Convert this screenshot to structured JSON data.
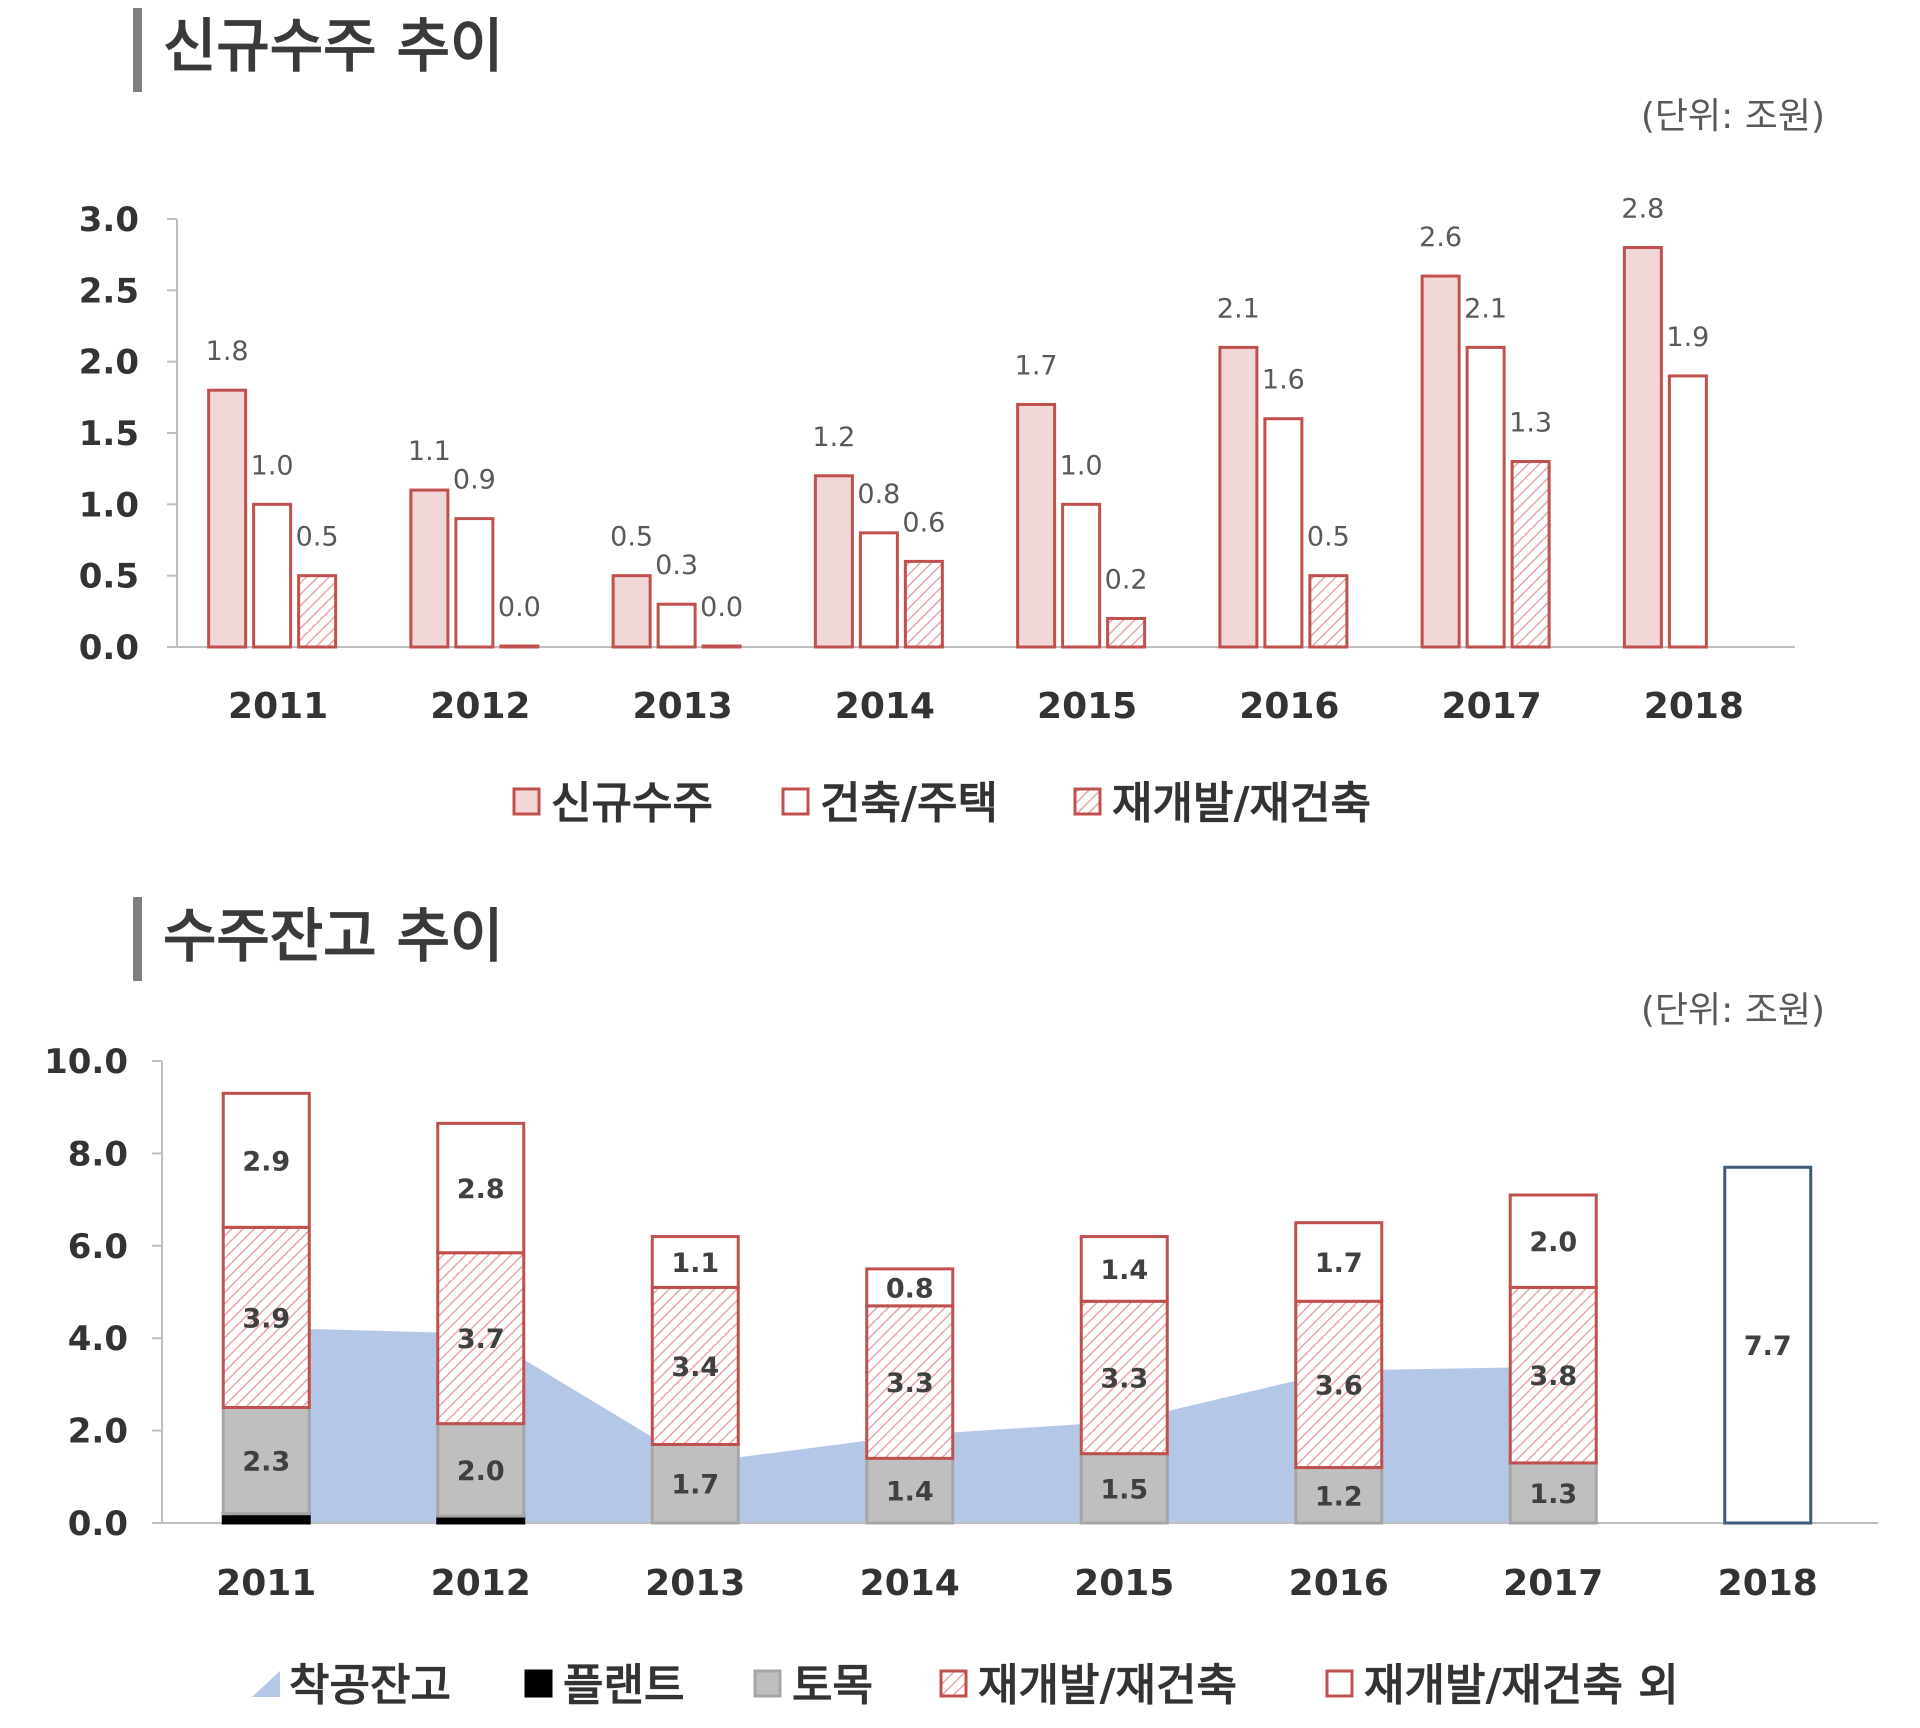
{
  "unit_label": "(단위: 조원)",
  "colors": {
    "red_fill": "#f2d7d9",
    "red_stroke": "#c0504d",
    "area_fill": "#b4c7e7",
    "gray_fill": "#bfbfbf",
    "navy_stroke": "#3f5b7a",
    "black": "#000000"
  },
  "chart_data": [
    {
      "type": "bar",
      "title": "신규수주 추이",
      "unit": "(단위: 조원)",
      "categories": [
        "2011",
        "2012",
        "2013",
        "2014",
        "2015",
        "2016",
        "2017",
        "2018"
      ],
      "ylim": [
        0,
        3.0
      ],
      "yticks": [
        "0.0",
        "0.5",
        "1.0",
        "1.5",
        "2.0",
        "2.5",
        "3.0"
      ],
      "series": [
        {
          "name": "신규수주",
          "style": "red-fill",
          "values": [
            1.8,
            1.1,
            0.5,
            1.2,
            1.7,
            2.1,
            2.6,
            2.8
          ],
          "labels": [
            "1.8",
            "1.1",
            "0.5",
            "1.2",
            "1.7",
            "2.1",
            "2.6",
            "2.8"
          ]
        },
        {
          "name": "건축/주택",
          "style": "white",
          "values": [
            1.0,
            0.9,
            0.3,
            0.8,
            1.0,
            1.6,
            2.1,
            1.9
          ],
          "labels": [
            "1.0",
            "0.9",
            "0.3",
            "0.8",
            "1.0",
            "1.6",
            "2.1",
            "1.9"
          ]
        },
        {
          "name": "재개발/재건축",
          "style": "hatch",
          "values": [
            0.5,
            0.0,
            0.0,
            0.6,
            0.2,
            0.5,
            1.3,
            null
          ],
          "labels": [
            "0.5",
            "0.0",
            "0.0",
            "0.6",
            "0.2",
            "0.5",
            "1.3",
            ""
          ]
        }
      ],
      "legend": [
        "신규수주",
        "건축/주택",
        "재개발/재건축"
      ],
      "legend_position": "bottom"
    },
    {
      "type": "bar",
      "stacked": true,
      "title": "수주잔고 추이",
      "unit": "(단위: 조원)",
      "categories": [
        "2011",
        "2012",
        "2013",
        "2014",
        "2015",
        "2016",
        "2017",
        "2018"
      ],
      "ylim": [
        0,
        10.0
      ],
      "yticks": [
        "0.0",
        "2.0",
        "4.0",
        "6.0",
        "8.0",
        "10.0"
      ],
      "area": {
        "name": "착공잔고",
        "values": [
          4.2,
          4.1,
          1.3,
          1.9,
          2.2,
          3.3,
          3.4,
          null
        ]
      },
      "series": [
        {
          "name": "플랜트",
          "style": "black",
          "values": [
            0.2,
            0.15,
            0,
            0,
            0,
            0,
            0,
            0
          ],
          "labels": [
            "",
            "",
            "",
            "",
            "",
            "",
            "",
            ""
          ]
        },
        {
          "name": "토목",
          "style": "gray",
          "values": [
            2.3,
            2.0,
            1.7,
            1.4,
            1.5,
            1.2,
            1.3,
            0
          ],
          "labels": [
            "2.3",
            "2.0",
            "1.7",
            "1.4",
            "1.5",
            "1.2",
            "1.3",
            ""
          ]
        },
        {
          "name": "재개발/재건축",
          "style": "hatch",
          "values": [
            3.9,
            3.7,
            3.4,
            3.3,
            3.3,
            3.6,
            3.8,
            0
          ],
          "labels": [
            "3.9",
            "3.7",
            "3.4",
            "3.3",
            "3.3",
            "3.6",
            "3.8",
            ""
          ]
        },
        {
          "name": "재개발/재건축 외",
          "style": "white",
          "values": [
            2.9,
            2.8,
            1.1,
            0.8,
            1.4,
            1.7,
            2.0,
            0
          ],
          "labels": [
            "2.9",
            "2.8",
            "1.1",
            "0.8",
            "1.4",
            "1.7",
            "2.0",
            ""
          ]
        }
      ],
      "total_2018": {
        "value": 7.7,
        "label": "7.7"
      },
      "legend": [
        "착공잔고",
        "플랜트",
        "토목",
        "재개발/재건축",
        "재개발/재건축 외"
      ],
      "legend_position": "bottom"
    }
  ]
}
